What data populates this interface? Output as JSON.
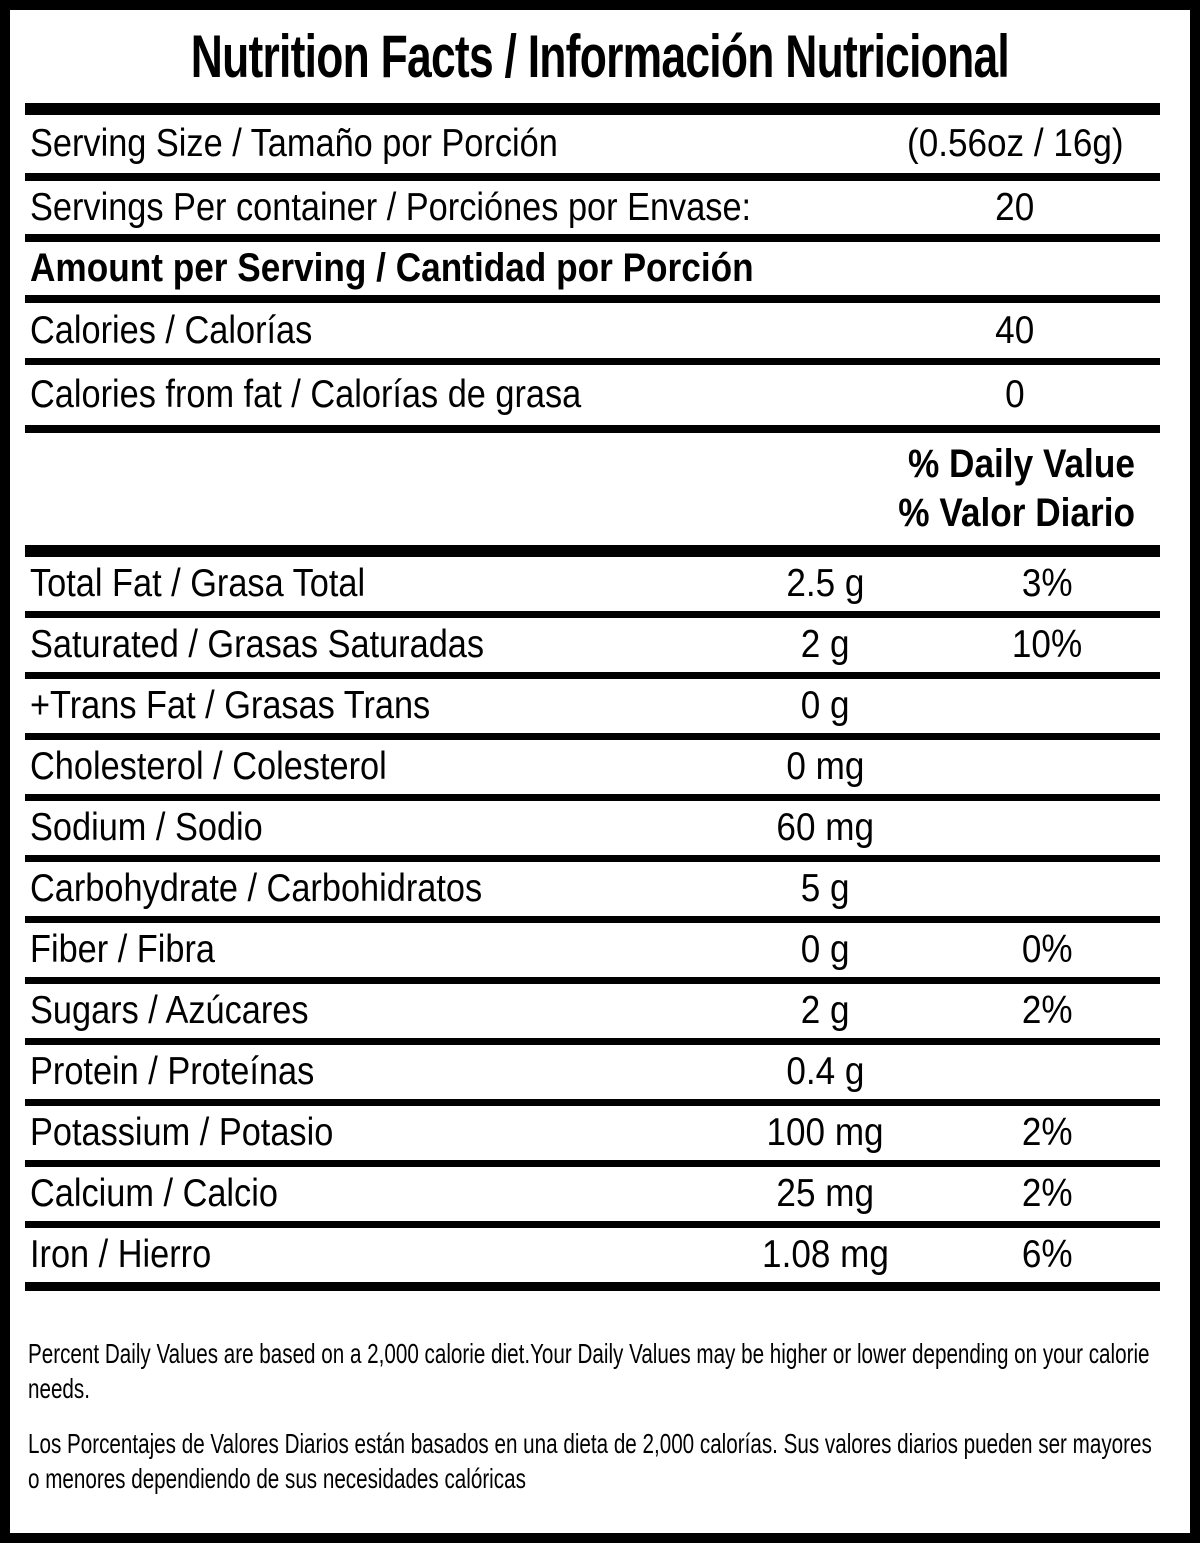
{
  "title": "Nutrition Facts / Información Nutricional",
  "serving": {
    "size": {
      "label": "Serving Size / Tamaño por Porción",
      "value": "(0.56oz / 16g)"
    },
    "per_container": {
      "label": "Servings Per container / Porciónes por Envase:",
      "value": "20"
    }
  },
  "amount_per_serving_header": "Amount per Serving / Cantidad por Porción",
  "calories": {
    "calories": {
      "label": "Calories / Calorías",
      "value": "40"
    },
    "calories_from_fat": {
      "label": "Calories from fat / Calorías de grasa",
      "value": "0"
    }
  },
  "daily_value_header": {
    "english": "% Daily Value",
    "spanish": "% Valor Diario"
  },
  "nutrients": [
    {
      "label": "Total Fat / Grasa Total",
      "amount": "2.5 g",
      "daily_value": "3%"
    },
    {
      "label": "Saturated / Grasas Saturadas",
      "amount": "2 g",
      "daily_value": "10%"
    },
    {
      "label": "+Trans Fat / Grasas Trans",
      "amount": "0 g",
      "daily_value": ""
    },
    {
      "label": "Cholesterol / Colesterol",
      "amount": "0 mg",
      "daily_value": ""
    },
    {
      "label": "Sodium / Sodio",
      "amount": "60 mg",
      "daily_value": ""
    },
    {
      "label": "Carbohydrate / Carbohidratos",
      "amount": "5 g",
      "daily_value": ""
    },
    {
      "label": "Fiber / Fibra",
      "amount": "0 g",
      "daily_value": "0%"
    },
    {
      "label": "Sugars / Azúcares",
      "amount": "2 g",
      "daily_value": "2%"
    },
    {
      "label": "Protein / Proteínas",
      "amount": "0.4 g",
      "daily_value": ""
    },
    {
      "label": "Potassium / Potasio",
      "amount": "100 mg",
      "daily_value": "2%"
    },
    {
      "label": "Calcium / Calcio",
      "amount": "25 mg",
      "daily_value": "2%"
    },
    {
      "label": "Iron / Hierro",
      "amount": "1.08 mg",
      "daily_value": "6%"
    }
  ],
  "footnotes": {
    "english": "Percent Daily Values are based on a 2,000 calorie diet.Your Daily Values may be higher or lower depending on your calorie needs.",
    "spanish": "Los Porcentajes de Valores Diarios están basados en una dieta de 2,000 calorías. Sus valores diarios pueden ser mayores o menores dependiendo de sus necesidades calóricas"
  },
  "colors": {
    "ink": "#000000",
    "paper": "#ffffff"
  }
}
